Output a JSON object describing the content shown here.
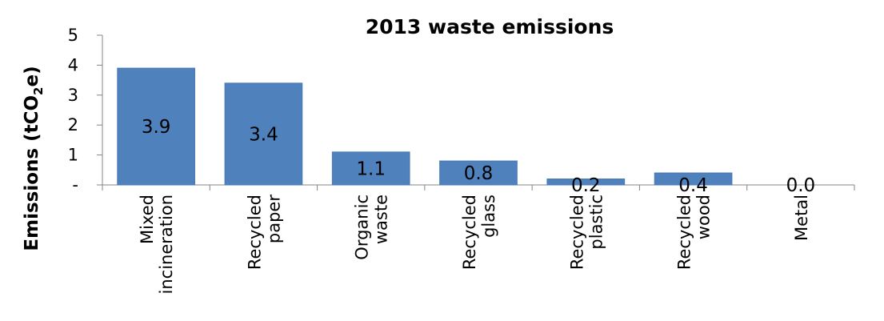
{
  "chart_data": {
    "type": "bar",
    "title": "2013 waste emissions",
    "ylabel": {
      "prefix": "Emissions (tCO",
      "subscript": "2",
      "suffix": "e)"
    },
    "xlabel": "",
    "categories": [
      [
        "Mixed",
        "incineration"
      ],
      [
        "Recycled",
        "paper"
      ],
      [
        "Organic",
        "waste"
      ],
      [
        "Recycled",
        "glass"
      ],
      [
        "Recycled",
        "plastic"
      ],
      [
        "Recycled",
        "wood"
      ],
      [
        "Metal"
      ]
    ],
    "values": [
      3.9,
      3.4,
      1.1,
      0.8,
      0.2,
      0.4,
      0.0
    ],
    "data_labels": [
      "3.9",
      "3.4",
      "1.1",
      "0.8",
      "0.2",
      "0.4",
      "0.0"
    ],
    "ylim": [
      0,
      5
    ],
    "yticks": [
      0,
      1,
      2,
      3,
      4,
      5
    ],
    "ytick_labels": [
      "-",
      "1",
      "2",
      "3",
      "4",
      "5"
    ],
    "grid": false,
    "legend": "none",
    "colors": {
      "bar": "#4f81bd",
      "axis": "#868686"
    }
  }
}
